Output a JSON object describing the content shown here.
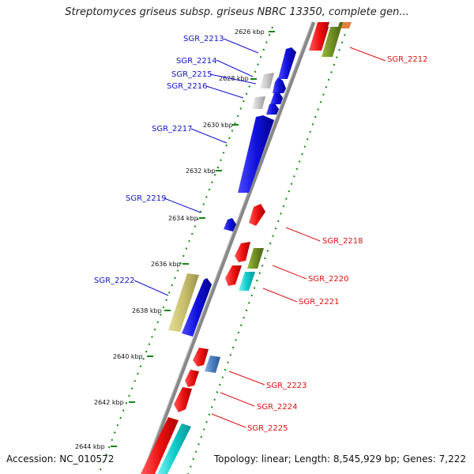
{
  "title": "Streptomyces griseus subsp. griseus NBRC 13350, complete gen...",
  "footer": {
    "accession": "Accession: NC_010572",
    "summary": "Topology: linear; Length: 8,545,929 bp; Genes: 7,222"
  },
  "colors": {
    "red": "#ee1111",
    "blue": "#1111dd",
    "olive": "#6e8c22",
    "khaki": "#c9c06e",
    "cyan": "#11cccc",
    "steel": "#4a7ec0",
    "gray": "#c8c8c8",
    "backbone": "#888888",
    "tick": "#118811",
    "label_left": "#1111cc",
    "label_right": "#dd1111"
  },
  "ruler": [
    "2626 kbp",
    "2628 kbp",
    "2630 kbp",
    "2632 kbp",
    "2634 kbp",
    "2636 kbp",
    "2638 kbp",
    "2640 kbp",
    "2642 kbp",
    "2644 kbp"
  ],
  "genes": [
    {
      "label": "SGR_2212",
      "color": "red"
    },
    {
      "label": "SGR_2213",
      "color": "blue"
    },
    {
      "label": "SGR_2214",
      "color": "blue"
    },
    {
      "label": "SGR_2215",
      "color": "blue"
    },
    {
      "label": "SGR_2216",
      "color": "blue"
    },
    {
      "label": "SGR_2217",
      "color": "blue"
    },
    {
      "label": "SGR_2218",
      "color": "red"
    },
    {
      "label": "SGR_2219",
      "color": "blue"
    },
    {
      "label": "SGR_2220",
      "color": "red"
    },
    {
      "label": "SGR_2221",
      "color": "red"
    },
    {
      "label": "SGR_2222",
      "color": "blue"
    },
    {
      "label": "SGR_2223",
      "color": "red"
    },
    {
      "label": "SGR_2224",
      "color": "red"
    },
    {
      "label": "SGR_2225",
      "color": "red"
    }
  ]
}
